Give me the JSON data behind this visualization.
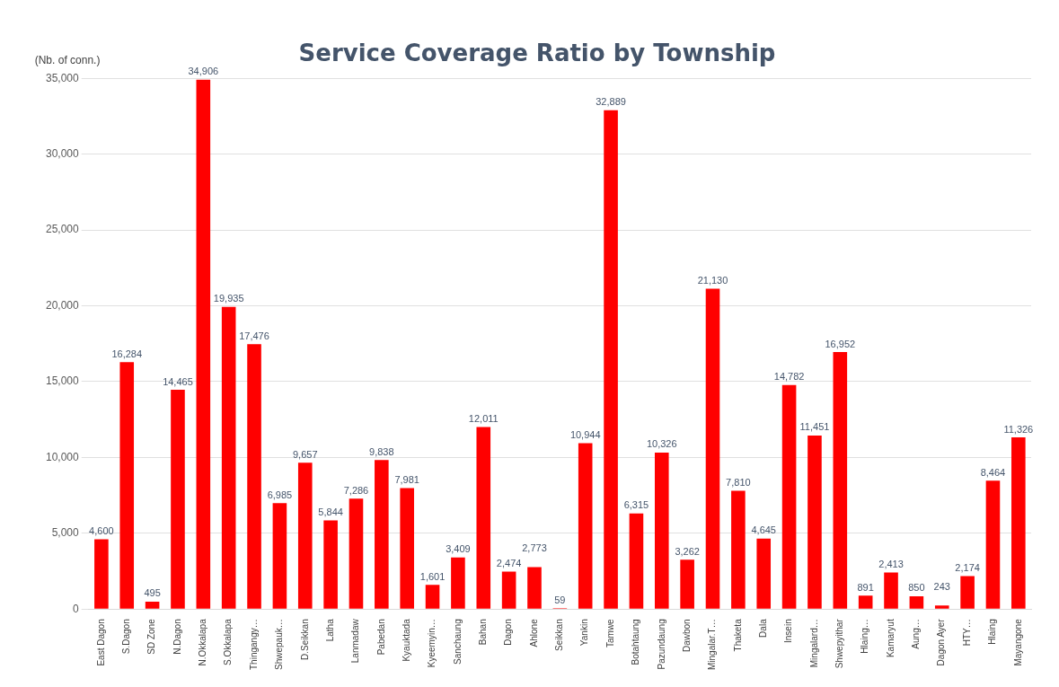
{
  "chart_data": {
    "type": "bar",
    "title": "Service Coverage Ratio by Township",
    "ylabel": "(Nb. of conn.)",
    "categories": [
      "East Dagon",
      "S.Dagon",
      "SD Zone",
      "N.Dagon",
      "N.Okkalapa",
      "S.Okkalapa",
      "Thingangy…",
      "Shwepauk…",
      "D.Seikkan",
      "Latha",
      "Lanmadaw",
      "Pabedan",
      "Kyauktada",
      "Kyeemyin…",
      "Sanchaung",
      "Bahan",
      "Dagon",
      "Ahlone",
      "Seikkan",
      "Yankin",
      "Tamwe",
      "Botahtaung",
      "Pazundaung",
      "Dawbon",
      "Mingalar.T…",
      "Thaketa",
      "Dala",
      "Insein",
      "Mingalard…",
      "Shwepyithar",
      "Hlaing…",
      "Kamaryut",
      "Aung…",
      "Dagon Ayer",
      "HTY…",
      "Hlaing",
      "Mayangone"
    ],
    "values": [
      4600,
      16284,
      495,
      14465,
      34906,
      19935,
      17476,
      6985,
      9657,
      5844,
      7286,
      9838,
      7981,
      1601,
      3409,
      12011,
      2474,
      2773,
      59,
      10944,
      32889,
      6315,
      10326,
      3262,
      21130,
      7810,
      4645,
      14782,
      11451,
      16952,
      891,
      2413,
      850,
      243,
      2174,
      8464,
      11326
    ],
    "value_labels": [
      "4,600",
      "16,284",
      "495",
      "14,465",
      "34,906",
      "19,935",
      "17,476",
      "6,985",
      "9,657",
      "5,844",
      "7,286",
      "9,838",
      "7,981",
      "1,601",
      "3,409",
      "12,011",
      "2,474",
      "2,773",
      "59",
      "10,944",
      "32,889",
      "6,315",
      "10,326",
      "3,262",
      "21,130",
      "7,810",
      "4,645",
      "14,782",
      "11,451",
      "16,952",
      "891",
      "2,413",
      "850",
      "243",
      "2,174",
      "8,464",
      "11,326"
    ],
    "color": "#ff0000",
    "ylim": [
      0,
      35000
    ],
    "yticks": [
      {
        "value": 0,
        "label": "0"
      },
      {
        "value": 5000,
        "label": "5,000"
      },
      {
        "value": 10000,
        "label": "10,000"
      },
      {
        "value": 15000,
        "label": "15,000"
      },
      {
        "value": 20000,
        "label": "20,000"
      },
      {
        "value": 25000,
        "label": "25,000"
      },
      {
        "value": 30000,
        "label": "30,000"
      },
      {
        "value": 35000,
        "label": "35,000"
      }
    ],
    "grid": "y",
    "legend": false
  }
}
